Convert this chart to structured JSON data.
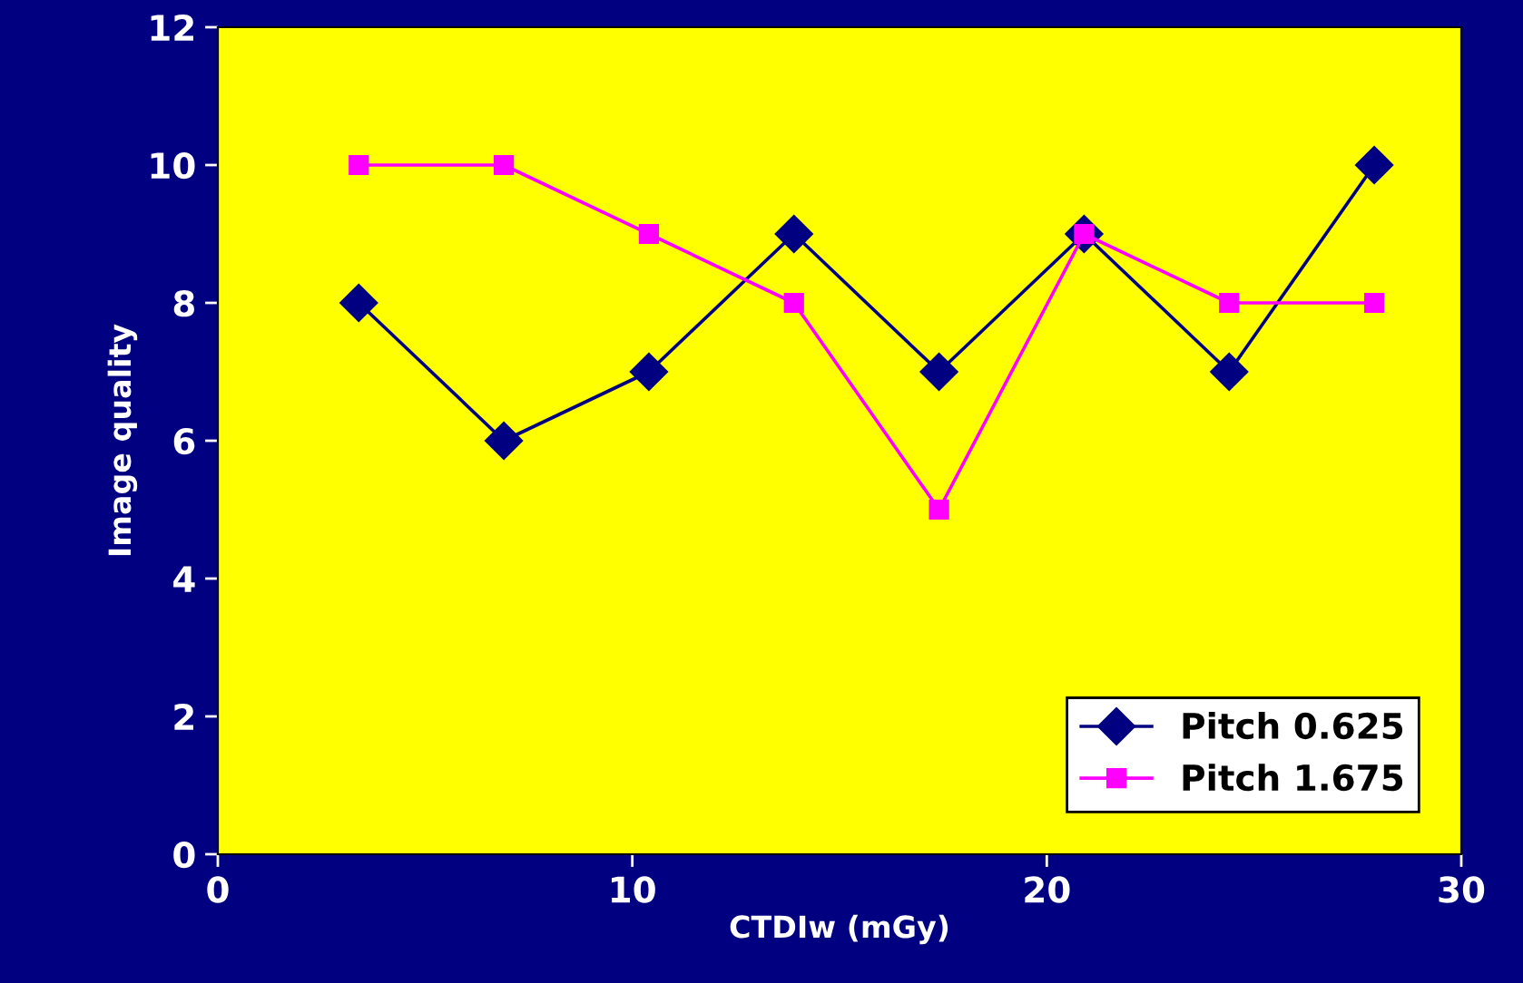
{
  "chart_data": {
    "type": "line",
    "xlabel": "CTDIw (mGy)",
    "ylabel": "Image quality",
    "x": [
      3.4,
      6.9,
      10.4,
      13.9,
      17.4,
      20.9,
      24.4,
      27.9
    ],
    "series": [
      {
        "name": "Pitch 0.625",
        "color": "#000080",
        "marker": "diamond",
        "values": [
          8,
          6,
          7,
          9,
          7,
          9,
          7,
          10
        ]
      },
      {
        "name": "Pitch 1.675",
        "color": "#ff00ff",
        "marker": "square",
        "values": [
          10,
          10,
          9,
          8,
          5,
          9,
          8,
          8
        ]
      }
    ],
    "xlim": [
      0,
      30
    ],
    "xticks": [
      0,
      10,
      20,
      30
    ],
    "ylim": [
      0,
      12
    ],
    "yticks": [
      0,
      2,
      4,
      6,
      8,
      10,
      12
    ],
    "grid": false,
    "legend": "bottom right",
    "line_style": "solid"
  }
}
